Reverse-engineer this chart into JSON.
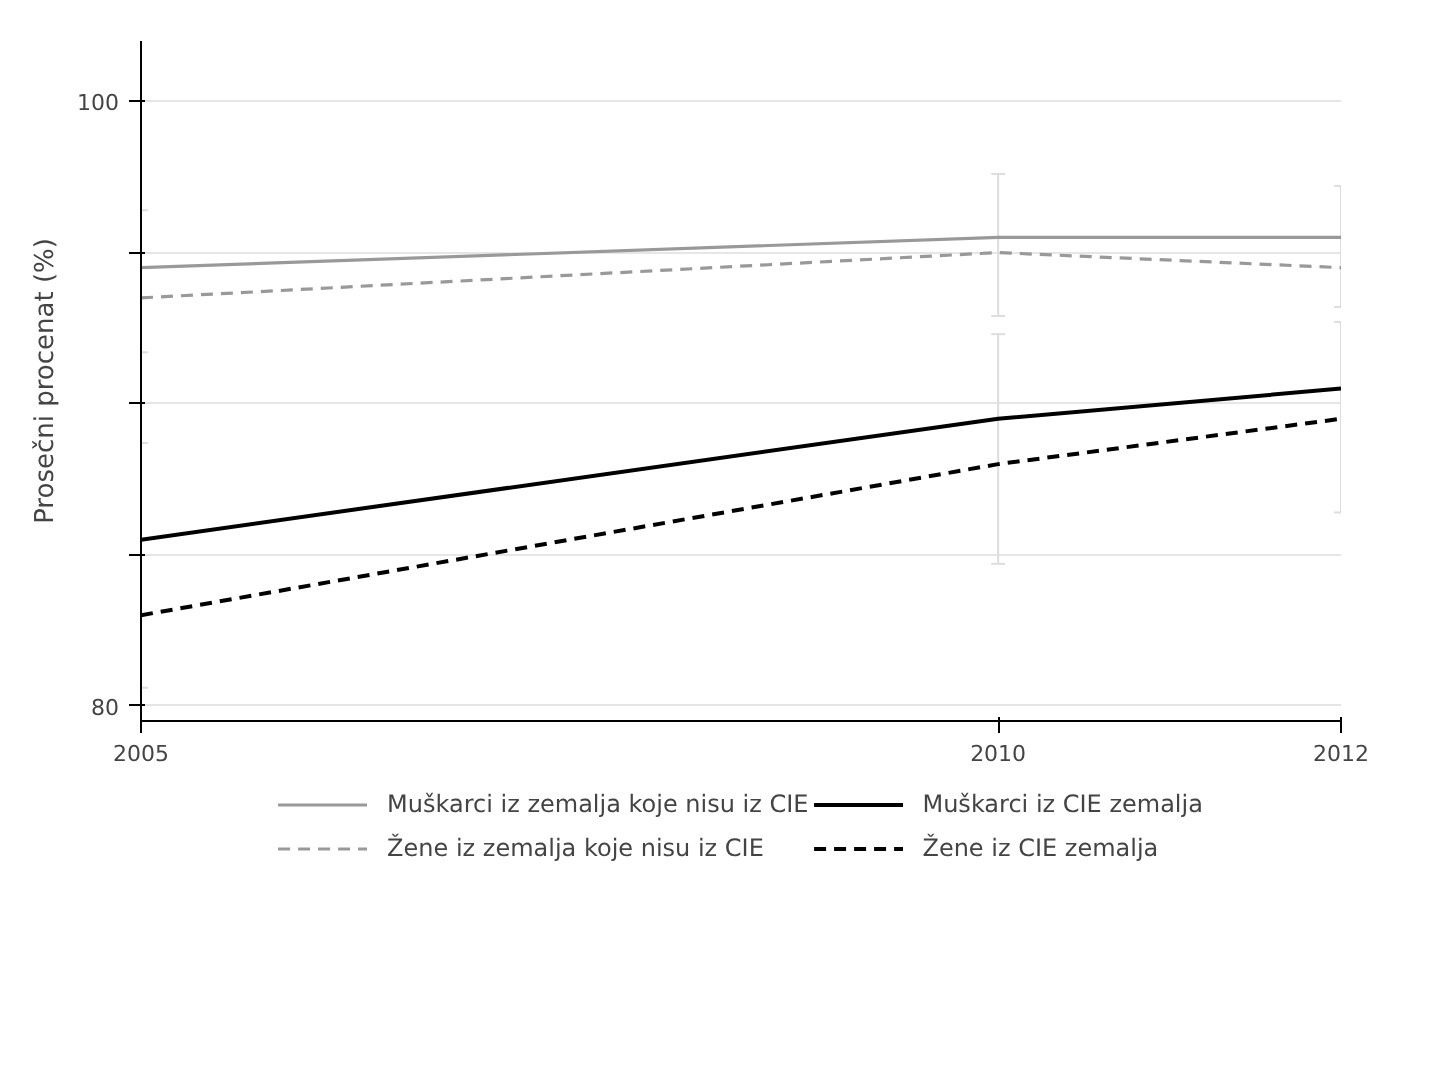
{
  "chart_data": {
    "type": "line",
    "ylabel": "Prosečni procenat (%)",
    "x": [
      2005,
      2010,
      2012
    ],
    "xlim": [
      2005,
      2012
    ],
    "xticks": [
      2005,
      2010,
      2012
    ],
    "ylim": [
      79.5,
      102
    ],
    "yticks": [
      {
        "value": 80,
        "label": "80"
      },
      {
        "value": 85,
        "label": null
      },
      {
        "value": 90,
        "label": null
      },
      {
        "value": 95,
        "label": null
      },
      {
        "value": 100,
        "label": "100"
      }
    ],
    "grid": "y",
    "legend": "bottom",
    "series": [
      {
        "name": "Muškarci iz zemalja koje nisu iz CIE",
        "color": "#999999",
        "line_style": "solid",
        "values": [
          94.5,
          95.5,
          95.5
        ],
        "errors": [
          [
            91.7,
            96.4
          ],
          [
            92.9,
            97.6
          ],
          [
            93.2,
            97.2
          ]
        ]
      },
      {
        "name": "Žene iz zemalja koje nisu iz CIE",
        "color": "#999999",
        "line_style": "dashed",
        "values": [
          93.5,
          95,
          94.5
        ]
      },
      {
        "name": "Muškarci iz CIE zemalja",
        "color": "#000000",
        "line_style": "solid",
        "values": [
          85.5,
          89.5,
          90.5
        ],
        "errors": [
          [
            80.6,
            88.7
          ],
          [
            84.7,
            92.3
          ],
          [
            86.4,
            92.7
          ]
        ]
      },
      {
        "name": "Žene iz CIE zemalja",
        "color": "#000000",
        "line_style": "dashed",
        "values": [
          83,
          88,
          89.5
        ]
      }
    ]
  }
}
